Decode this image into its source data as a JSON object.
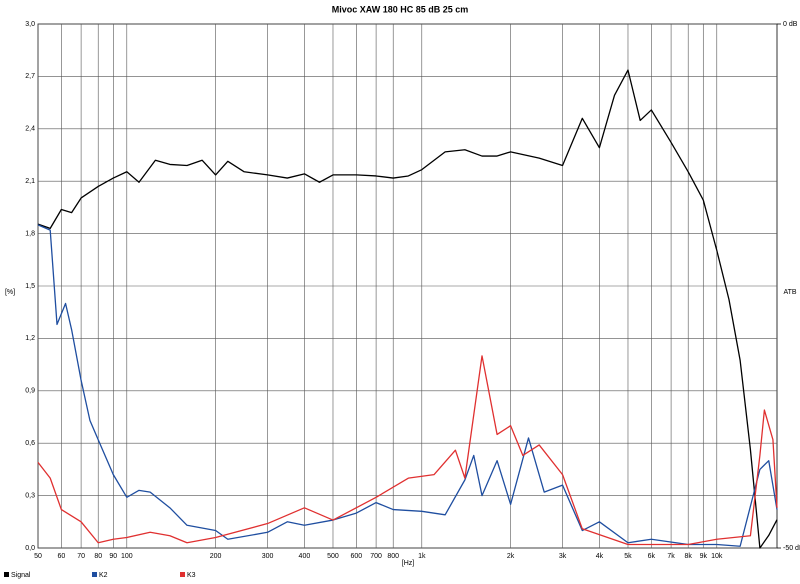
{
  "chart_data": {
    "type": "line",
    "title": "Mivoc XAW 180 HC 85 dB 25 cm",
    "x_label": "[Hz]",
    "y_label": "[%]",
    "y2_label": "ATB",
    "log_x": true,
    "grid": true,
    "xlim": [
      50,
      16000
    ],
    "xticks": [
      50,
      60,
      70,
      80,
      90,
      100,
      200,
      300,
      400,
      500,
      600,
      700,
      800,
      {
        "value": 1000,
        "label": "1k"
      },
      {
        "value": 2000,
        "label": "2k"
      },
      {
        "value": 3000,
        "label": "3k"
      },
      {
        "value": 4000,
        "label": "4k"
      },
      {
        "value": 5000,
        "label": "5k"
      },
      {
        "value": 6000,
        "label": "6k"
      },
      {
        "value": 7000,
        "label": "7k"
      },
      {
        "value": 8000,
        "label": "8k"
      },
      {
        "value": 9000,
        "label": "9k"
      },
      {
        "value": 10000,
        "label": "10k"
      }
    ],
    "ylim": [
      0,
      3
    ],
    "yticks": [
      {
        "value": 0,
        "label": "0,0"
      },
      {
        "value": 0.3,
        "label": "0,3"
      },
      {
        "value": 0.6,
        "label": "0,6"
      },
      {
        "value": 0.9,
        "label": "0,9"
      },
      {
        "value": 1.2,
        "label": "1,2"
      },
      {
        "value": 1.5,
        "label": "1,5"
      },
      {
        "value": 1.8,
        "label": "1,8"
      },
      {
        "value": 2.1,
        "label": "2,1"
      },
      {
        "value": 2.4,
        "label": "2,4"
      },
      {
        "value": 2.7,
        "label": "2,7"
      },
      {
        "value": 3.0,
        "label": "3,0"
      }
    ],
    "y2lim": [
      -50,
      0
    ],
    "y2ticks": [
      {
        "value": 0,
        "label": "0 dB"
      },
      {
        "value": -50,
        "label": "-50 dB"
      }
    ],
    "series": [
      {
        "name": "Signal",
        "color": "#000000",
        "axis": "y2",
        "x": [
          50,
          55,
          60,
          65,
          70,
          80,
          90,
          100,
          110,
          125,
          140,
          160,
          180,
          200,
          220,
          250,
          300,
          350,
          400,
          450,
          500,
          600,
          700,
          800,
          900,
          1000,
          1200,
          1400,
          1600,
          1800,
          2000,
          2500,
          3000,
          3500,
          4000,
          4500,
          5000,
          5500,
          6000,
          7000,
          8000,
          9000,
          10000,
          11000,
          12000,
          13000,
          14000,
          15000,
          16000
        ],
        "values": [
          -19.1,
          -19.5,
          -17.7,
          -18.0,
          -16.6,
          -15.5,
          -14.7,
          -14.1,
          -15.1,
          -13.0,
          -13.4,
          -13.5,
          -13.0,
          -14.4,
          -13.1,
          -14.1,
          -14.4,
          -14.7,
          -14.3,
          -15.1,
          -14.4,
          -14.4,
          -14.5,
          -14.7,
          -14.5,
          -13.9,
          -12.2,
          -12.0,
          -12.6,
          -12.6,
          -12.2,
          -12.8,
          -13.5,
          -9.0,
          -11.8,
          -6.8,
          -4.4,
          -9.2,
          -8.2,
          -11.3,
          -14.1,
          -16.8,
          -21.6,
          -26.3,
          -32.1,
          -40.6,
          -50,
          -48.8,
          -47.3
        ]
      },
      {
        "name": "K2",
        "color": "#1f4ea0",
        "x": [
          50,
          55,
          58,
          62,
          65,
          70,
          75,
          80,
          90,
          100,
          110,
          120,
          140,
          160,
          200,
          220,
          300,
          350,
          400,
          500,
          600,
          700,
          800,
          1000,
          1200,
          1400,
          1500,
          1600,
          1800,
          2000,
          2300,
          2600,
          3000,
          3500,
          4000,
          5000,
          6000,
          8000,
          10000,
          12000,
          14000,
          15000,
          16000
        ],
        "values": [
          1.85,
          1.82,
          1.28,
          1.4,
          1.25,
          0.96,
          0.73,
          0.62,
          0.42,
          0.29,
          0.33,
          0.32,
          0.23,
          0.13,
          0.1,
          0.05,
          0.09,
          0.15,
          0.13,
          0.16,
          0.2,
          0.26,
          0.22,
          0.21,
          0.19,
          0.39,
          0.53,
          0.3,
          0.5,
          0.25,
          0.63,
          0.32,
          0.36,
          0.1,
          0.15,
          0.03,
          0.05,
          0.02,
          0.02,
          0.01,
          0.45,
          0.5,
          0.22
        ]
      },
      {
        "name": "K3",
        "color": "#e03030",
        "x": [
          50,
          55,
          60,
          70,
          80,
          90,
          100,
          120,
          140,
          160,
          200,
          300,
          400,
          500,
          700,
          900,
          1100,
          1300,
          1400,
          1600,
          1800,
          2000,
          2200,
          2500,
          3000,
          3500,
          5000,
          8000,
          10000,
          13000,
          14000,
          14500,
          15500,
          16000
        ],
        "values": [
          0.49,
          0.4,
          0.22,
          0.15,
          0.03,
          0.05,
          0.06,
          0.09,
          0.07,
          0.03,
          0.06,
          0.14,
          0.23,
          0.16,
          0.29,
          0.4,
          0.42,
          0.56,
          0.4,
          1.1,
          0.65,
          0.7,
          0.53,
          0.59,
          0.42,
          0.11,
          0.02,
          0.02,
          0.05,
          0.07,
          0.53,
          0.79,
          0.62,
          0.23
        ]
      }
    ]
  }
}
